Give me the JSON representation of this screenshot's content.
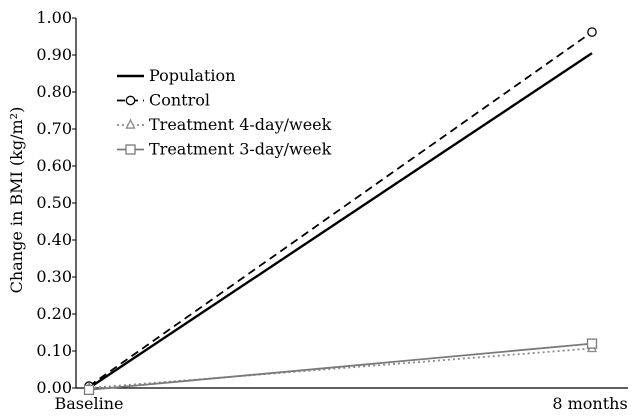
{
  "chart_data": {
    "type": "line",
    "title": "",
    "xlabel": "",
    "ylabel": "Change in BMI (kg/m²)",
    "categories": [
      "Baseline",
      "8 months"
    ],
    "ylim": [
      0,
      1.0
    ],
    "yticks": [
      "0.00",
      "0.10",
      "0.20",
      "0.30",
      "0.40",
      "0.50",
      "0.60",
      "0.70",
      "0.80",
      "0.90",
      "1.00"
    ],
    "grid": false,
    "legend_position": "top-left",
    "series": [
      {
        "name": "Population",
        "values": [
          0.0,
          0.905
        ],
        "color": "#000000",
        "dash": "solid",
        "marker": "none",
        "width": 2.4
      },
      {
        "name": "Control",
        "values": [
          0.005,
          0.962
        ],
        "color": "#000000",
        "dash": "dashed",
        "marker": "circle",
        "width": 1.8
      },
      {
        "name": "Treatment 4-day/week",
        "values": [
          0.0,
          0.107
        ],
        "color": "#8a8a8a",
        "dash": "dotted",
        "marker": "triangle",
        "width": 1.8
      },
      {
        "name": "Treatment 3-day/week",
        "values": [
          -0.005,
          0.12
        ],
        "color": "#7a7a7a",
        "dash": "solid",
        "marker": "square",
        "width": 1.8
      }
    ]
  }
}
